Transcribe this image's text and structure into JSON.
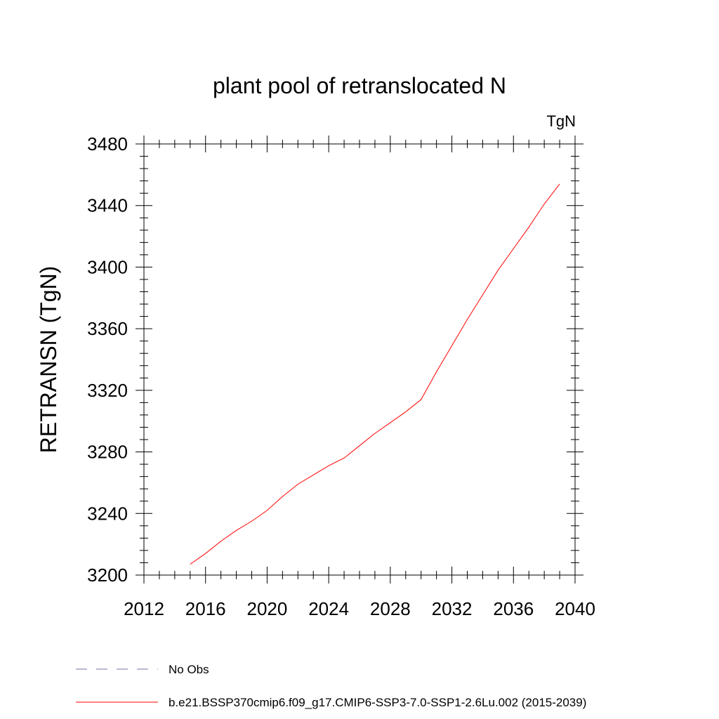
{
  "chart_data": {
    "type": "line",
    "title": "plant pool of retranslocated N",
    "units_label": "TgN",
    "ylabel": "RETRANSN  (TgN)",
    "xlabel": "",
    "xlim": [
      2012,
      2040
    ],
    "ylim": [
      3200,
      3480
    ],
    "x_ticks": [
      2012,
      2016,
      2020,
      2024,
      2028,
      2032,
      2036,
      2040
    ],
    "y_ticks": [
      3200,
      3240,
      3280,
      3320,
      3360,
      3400,
      3440,
      3480
    ],
    "x_tick_labels": [
      "2012",
      "2016",
      "2020",
      "2024",
      "2028",
      "2032",
      "2036",
      "2040"
    ],
    "y_tick_labels": [
      "3200",
      "3240",
      "3280",
      "3320",
      "3360",
      "3400",
      "3440",
      "3480"
    ],
    "x_minor_step": 1,
    "y_minor_step": 8,
    "grid": false,
    "legend_position": "bottom",
    "series": [
      {
        "name": "b.e21.BSSP370cmip6.f09_g17.CMIP6-SSP3-7.0-SSP1-2.6Lu.002 (2015-2039)",
        "color": "#ff0000",
        "line_style": "solid",
        "x": [
          2015,
          2016,
          2017,
          2018,
          2019,
          2020,
          2021,
          2022,
          2023,
          2024,
          2025,
          2026,
          2027,
          2028,
          2029,
          2030,
          2031,
          2032,
          2033,
          2034,
          2035,
          2036,
          2037,
          2038,
          2039
        ],
        "values": [
          3207,
          3214,
          3222,
          3229,
          3235,
          3242,
          3251,
          3259,
          3265,
          3271,
          3276,
          3284,
          3292,
          3299,
          3306,
          3314,
          3332,
          3349,
          3366,
          3382,
          3398,
          3412,
          3426,
          3441,
          3454
        ]
      }
    ],
    "legend": [
      {
        "label": "No Obs",
        "color": "#7b6fa8",
        "line_style": "dashed"
      },
      {
        "label": "b.e21.BSSP370cmip6.f09_g17.CMIP6-SSP3-7.0-SSP1-2.6Lu.002 (2015-2039)",
        "color": "#ff0000",
        "line_style": "solid"
      }
    ]
  }
}
